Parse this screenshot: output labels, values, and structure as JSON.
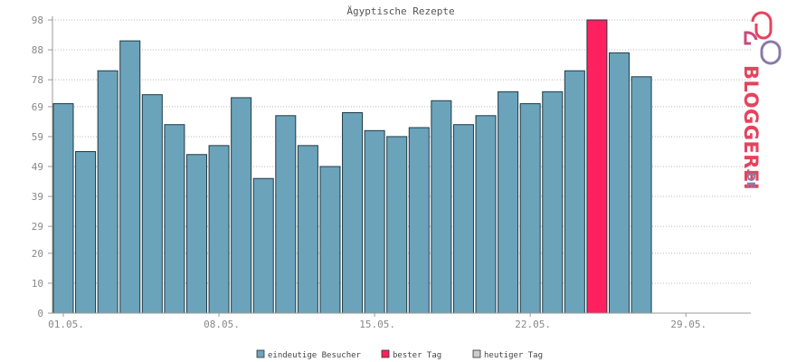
{
  "chart_data": {
    "type": "bar",
    "title": "Ägyptische Rezepte",
    "xlabel": "",
    "ylabel": "",
    "ylim": [
      0,
      98
    ],
    "yticks": [
      0,
      10,
      20,
      29,
      39,
      49,
      59,
      69,
      78,
      88,
      98
    ],
    "xticks": [
      {
        "index": 0,
        "label": "01.05."
      },
      {
        "index": 7,
        "label": "08.05."
      },
      {
        "index": 14,
        "label": "15.05."
      },
      {
        "index": 21,
        "label": "22.05."
      },
      {
        "index": 28,
        "label": "29.05."
      }
    ],
    "num_slots": 31,
    "grid": true,
    "legend_position": "bottom",
    "series": [
      {
        "name": "eindeutige Besucher",
        "color": "#6ba3bb",
        "values": [
          70,
          54,
          81,
          91,
          73,
          63,
          53,
          56,
          72,
          45,
          66,
          56,
          49,
          67,
          61,
          59,
          62,
          71,
          63,
          66,
          74,
          70,
          74,
          81,
          98,
          87,
          79
        ]
      },
      {
        "name": "bester Tag",
        "color": "#ff2060"
      },
      {
        "name": "heutiger Tag",
        "color": "#cccccc"
      }
    ],
    "best_day_index": 24
  },
  "logo": {
    "text": "BLOGGEREI",
    "suffix": ".DE"
  }
}
